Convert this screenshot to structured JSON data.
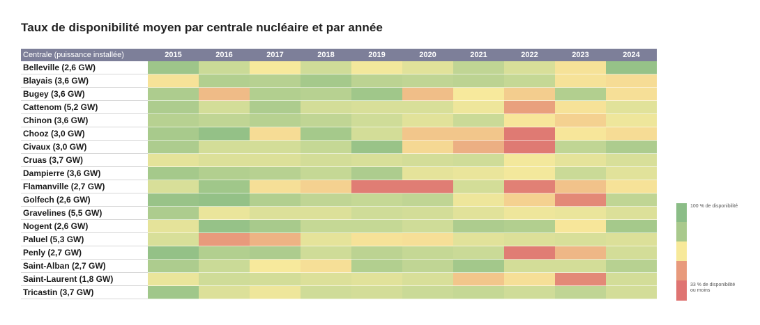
{
  "title": "Taux de disponibilité moyen par centrale nucléaire et par année",
  "header": {
    "row_label": "Centrale (puissance installée)",
    "years": [
      "2015",
      "2016",
      "2017",
      "2018",
      "2019",
      "2020",
      "2021",
      "2022",
      "2023",
      "2024"
    ]
  },
  "chart_data": {
    "type": "heatmap",
    "title": "Taux de disponibilité moyen par centrale nucléaire et par année",
    "x": [
      "2015",
      "2016",
      "2017",
      "2018",
      "2019",
      "2020",
      "2021",
      "2022",
      "2023",
      "2024"
    ],
    "y": [
      "Belleville (2,6 GW)",
      "Blayais (3,6 GW)",
      "Bugey (3,6 GW)",
      "Cattenom (5,2 GW)",
      "Chinon (3,6 GW)",
      "Chooz (3,0 GW)",
      "Civaux (3,0 GW)",
      "Cruas (3,7 GW)",
      "Dampierre (3,6 GW)",
      "Flamanville (2,7 GW)",
      "Golfech (2,6 GW)",
      "Gravelines (5,5 GW)",
      "Nogent (2,6 GW)",
      "Paluel (5,3 GW)",
      "Penly (2,7 GW)",
      "Saint-Alban (2,7 GW)",
      "Saint-Laurent (1,8 GW)",
      "Tricastin (3,7 GW)"
    ],
    "scale_unit": "% de disponibilité",
    "scale_min": 33,
    "scale_max": 100,
    "values": [
      [
        89,
        78,
        68,
        77,
        69,
        73,
        80,
        75,
        66,
        92
      ],
      [
        66,
        83,
        82,
        86,
        81,
        80,
        81,
        79,
        66,
        64
      ],
      [
        84,
        55,
        83,
        82,
        88,
        56,
        68,
        60,
        83,
        65
      ],
      [
        84,
        76,
        84,
        76,
        75,
        75,
        70,
        48,
        66,
        73
      ],
      [
        82,
        80,
        82,
        80,
        77,
        73,
        78,
        67,
        61,
        70
      ],
      [
        85,
        93,
        64,
        86,
        76,
        58,
        58,
        35,
        67,
        64
      ],
      [
        84,
        76,
        76,
        79,
        91,
        63,
        52,
        35,
        80,
        84
      ],
      [
        72,
        74,
        74,
        76,
        75,
        76,
        77,
        69,
        72,
        75
      ],
      [
        86,
        83,
        82,
        79,
        84,
        72,
        71,
        69,
        78,
        73
      ],
      [
        75,
        88,
        65,
        61,
        36,
        36,
        76,
        37,
        57,
        66
      ],
      [
        91,
        93,
        83,
        80,
        79,
        80,
        70,
        61,
        40,
        80
      ],
      [
        84,
        71,
        74,
        74,
        77,
        76,
        73,
        70,
        71,
        74
      ],
      [
        72,
        92,
        85,
        79,
        79,
        77,
        84,
        83,
        67,
        86
      ],
      [
        75,
        46,
        53,
        72,
        66,
        65,
        73,
        74,
        75,
        74
      ],
      [
        93,
        83,
        84,
        77,
        81,
        79,
        78,
        36,
        54,
        76
      ],
      [
        84,
        78,
        68,
        65,
        83,
        80,
        87,
        76,
        76,
        82
      ],
      [
        71,
        77,
        76,
        74,
        73,
        75,
        58,
        65,
        40,
        76
      ],
      [
        88,
        74,
        70,
        77,
        76,
        78,
        79,
        77,
        80,
        76
      ]
    ]
  },
  "legend": {
    "top_label": "100 % de disponibilité",
    "bottom_label": "33 % de disponibilité ou moins",
    "colors": [
      "#8bbd87",
      "#a9c98c",
      "#f7e99a",
      "#e89a7c",
      "#df7472"
    ]
  }
}
